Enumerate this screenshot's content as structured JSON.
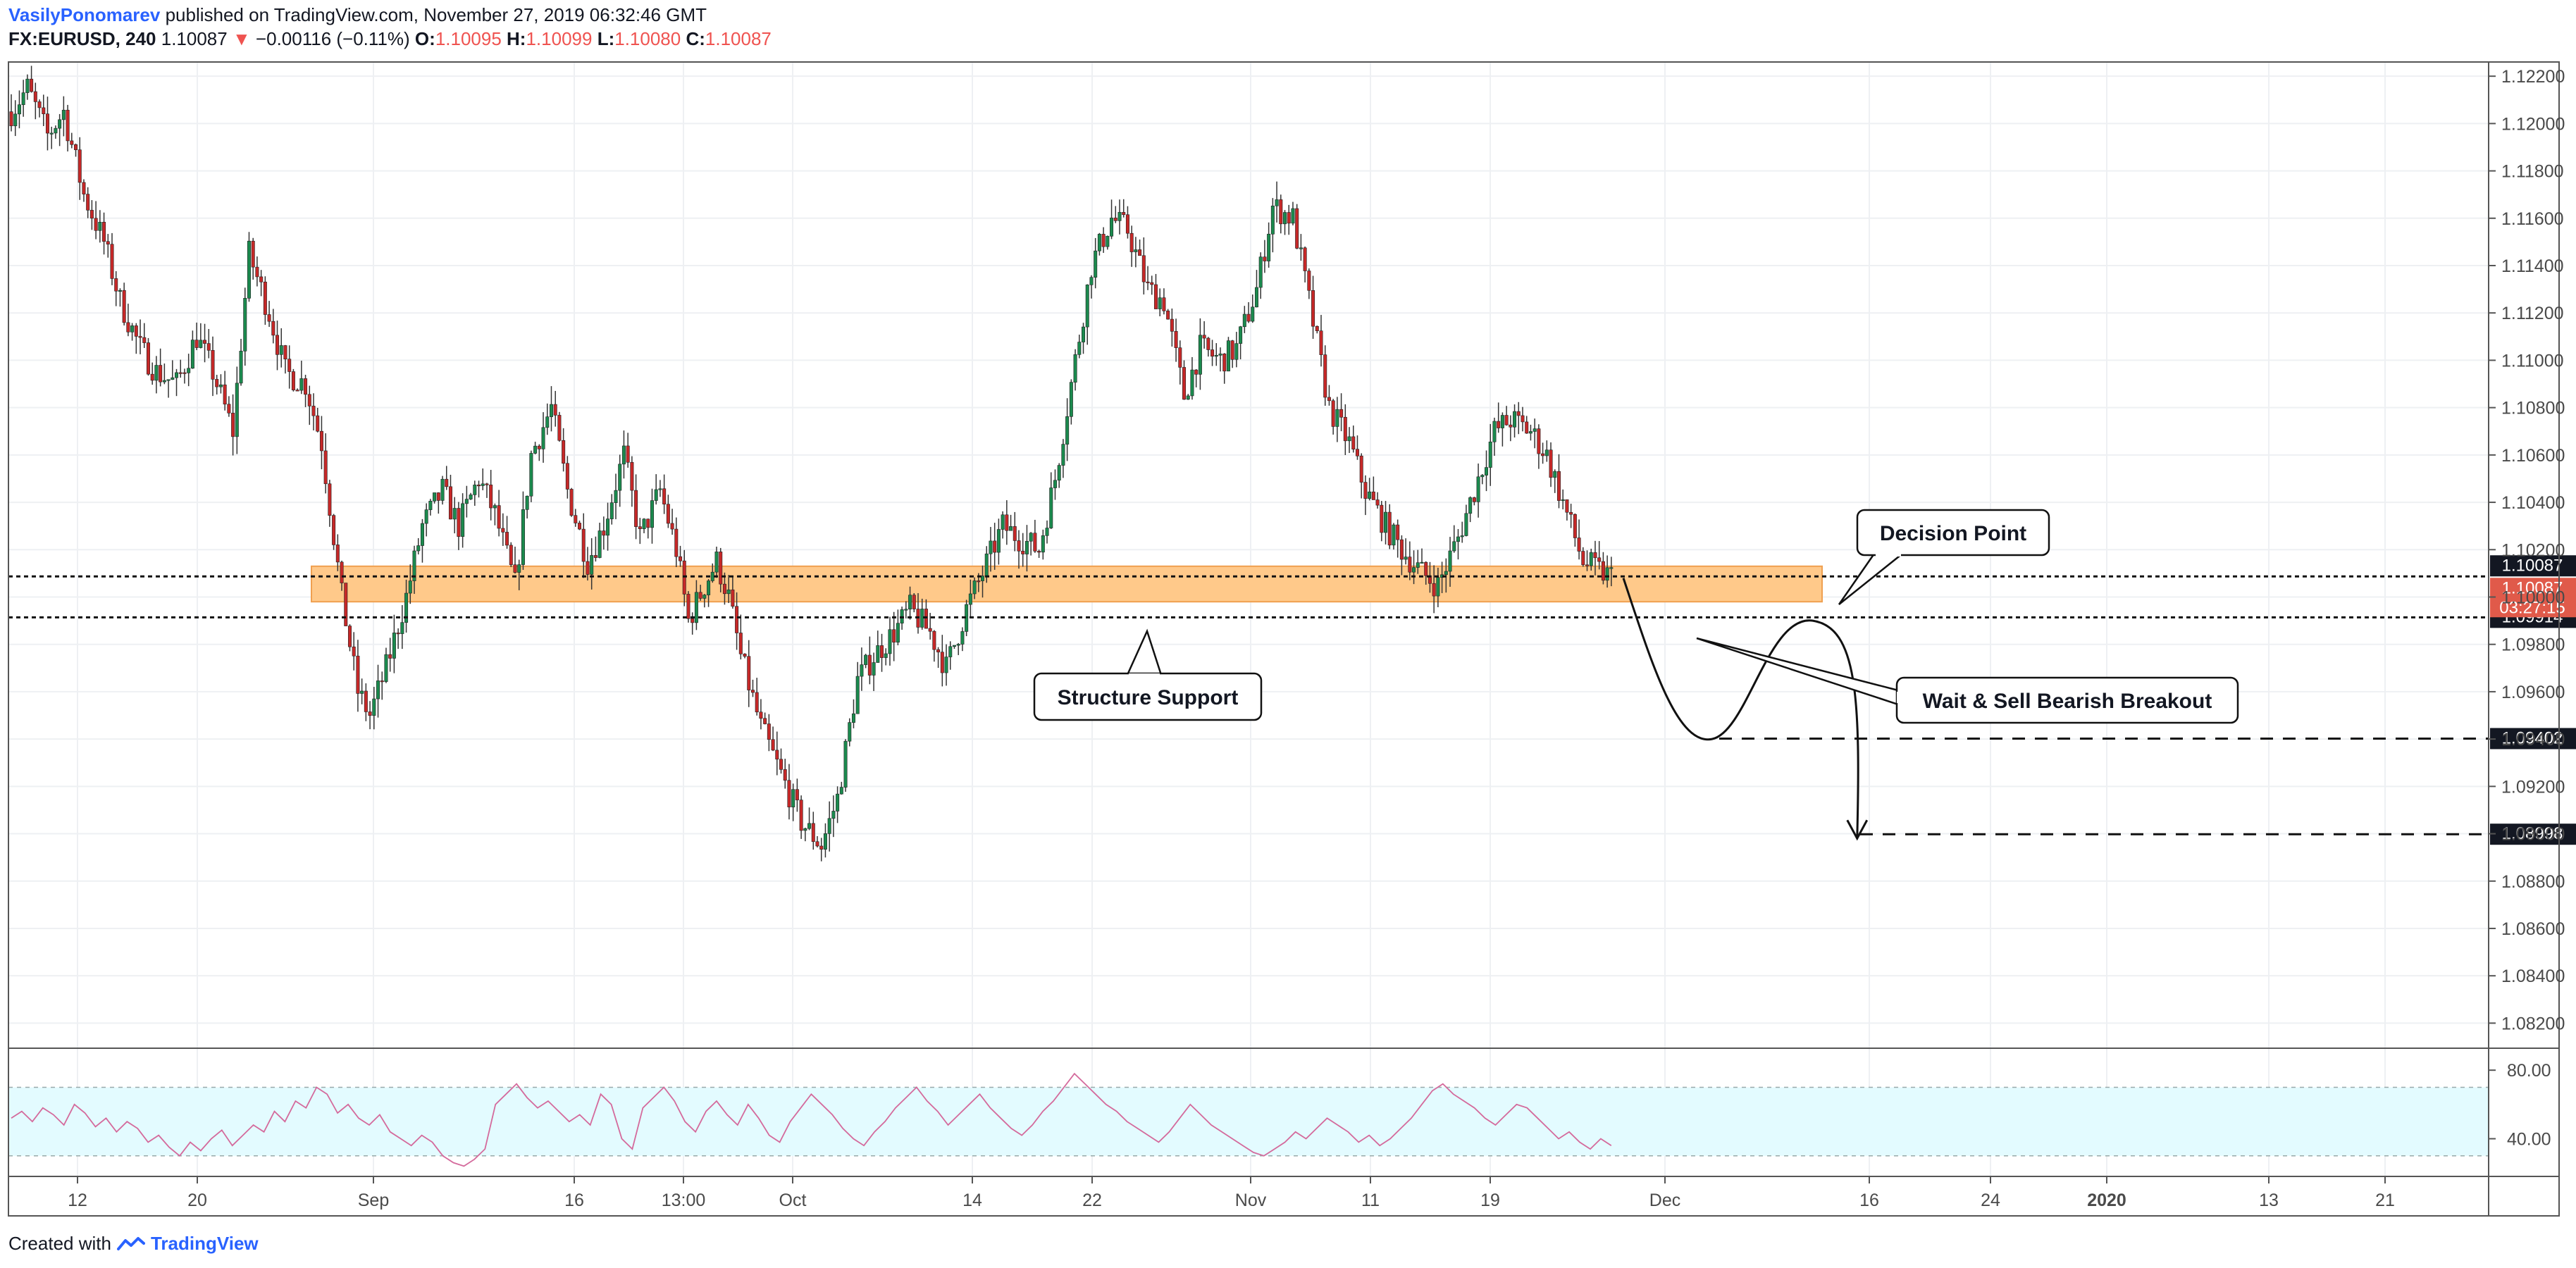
{
  "header": {
    "author": "VasilyPonomarev",
    "published": "published on TradingView.com, November 27, 2019 06:32:46 GMT",
    "symbol": "FX:EURUSD, 240",
    "last": "1.10087",
    "change_arrow": "▼",
    "change": "−0.00116 (−0.11%)",
    "o_label": "O:",
    "o": "1.10095",
    "h_label": "H:",
    "h": "1.10099",
    "l_label": "L:",
    "l": "1.10080",
    "c_label": "C:",
    "c": "1.10087"
  },
  "footer": {
    "created_with": "Created with",
    "brand": "TradingView",
    "logo_icon": "tradingview-logo-icon"
  },
  "colors": {
    "up": "#1b8a4e",
    "down": "#c62828",
    "zone": "#ffc98a",
    "rsi_band": "#e3fbff",
    "rsi_line": "#d46a9c",
    "grid": "#eef0f3",
    "axis_text": "#4a4a4a"
  },
  "chart_data": [
    {
      "type": "candlestick",
      "symbol": "FX:EURUSD",
      "interval": "240",
      "ylim": [
        1.081,
        1.1226
      ],
      "y_ticks": [
        "1.12200",
        "1.12000",
        "1.11800",
        "1.11600",
        "1.11400",
        "1.11200",
        "1.11000",
        "1.10800",
        "1.10600",
        "1.10400",
        "1.10200",
        "1.10000",
        "1.09800",
        "1.09600",
        "1.09400",
        "1.09200",
        "1.09000",
        "1.08800",
        "1.08600",
        "1.08400",
        "1.08200"
      ],
      "x_ticks": [
        "12",
        "20",
        "Sep",
        "16",
        "13:00",
        "Oct",
        "14",
        "22",
        "Nov",
        "11",
        "19",
        "Dec",
        "16",
        "24",
        "2020",
        "13",
        "21"
      ],
      "price_path": [
        [
          0,
          1.1205
        ],
        [
          4,
          1.1215
        ],
        [
          9,
          1.1195
        ],
        [
          13,
          1.1205
        ],
        [
          18,
          1.117
        ],
        [
          23,
          1.115
        ],
        [
          27,
          1.1125
        ],
        [
          32,
          1.1105
        ],
        [
          36,
          1.1095
        ],
        [
          41,
          1.109
        ],
        [
          46,
          1.111
        ],
        [
          50,
          1.1095
        ],
        [
          55,
          1.107
        ],
        [
          59,
          1.1145
        ],
        [
          64,
          1.112
        ],
        [
          68,
          1.1095
        ],
        [
          73,
          1.109
        ],
        [
          77,
          1.1065
        ],
        [
          82,
          1.1
        ],
        [
          86,
          1.096
        ],
        [
          89,
          1.095
        ],
        [
          93,
          1.097
        ],
        [
          98,
          1.1
        ],
        [
          102,
          1.103
        ],
        [
          107,
          1.1045
        ],
        [
          111,
          1.103
        ],
        [
          116,
          1.105
        ],
        [
          120,
          1.1035
        ],
        [
          125,
          1.1005
        ],
        [
          129,
          1.106
        ],
        [
          134,
          1.108
        ],
        [
          138,
          1.1045
        ],
        [
          143,
          1.1015
        ],
        [
          147,
          1.103
        ],
        [
          152,
          1.106
        ],
        [
          156,
          1.1025
        ],
        [
          161,
          1.1045
        ],
        [
          165,
          1.102
        ],
        [
          168,
          1.099
        ],
        [
          172,
          1.1005
        ],
        [
          175,
          1.1015
        ],
        [
          178,
          1.1
        ],
        [
          181,
          1.0975
        ],
        [
          186,
          1.0945
        ],
        [
          191,
          1.0925
        ],
        [
          196,
          1.0905
        ],
        [
          201,
          1.0895
        ],
        [
          205,
          1.0915
        ],
        [
          210,
          1.0965
        ],
        [
          214,
          1.0975
        ],
        [
          219,
          1.0985
        ],
        [
          223,
          1.0995
        ],
        [
          228,
          1.0985
        ],
        [
          232,
          1.097
        ],
        [
          237,
          1.0995
        ],
        [
          241,
          1.101
        ],
        [
          246,
          1.103
        ],
        [
          250,
          1.1025
        ],
        [
          255,
          1.102
        ],
        [
          259,
          1.105
        ],
        [
          264,
          1.11
        ],
        [
          268,
          1.114
        ],
        [
          273,
          1.116
        ],
        [
          277,
          1.1155
        ],
        [
          282,
          1.113
        ],
        [
          286,
          1.1125
        ],
        [
          291,
          1.1085
        ],
        [
          295,
          1.1105
        ],
        [
          300,
          1.11
        ],
        [
          304,
          1.1105
        ],
        [
          309,
          1.113
        ],
        [
          313,
          1.1165
        ],
        [
          318,
          1.116
        ],
        [
          322,
          1.1125
        ],
        [
          327,
          1.108
        ],
        [
          332,
          1.1065
        ],
        [
          336,
          1.1045
        ],
        [
          341,
          1.103
        ],
        [
          345,
          1.102
        ],
        [
          350,
          1.101
        ],
        [
          354,
          1.1005
        ],
        [
          359,
          1.1025
        ],
        [
          363,
          1.1045
        ],
        [
          368,
          1.107
        ],
        [
          372,
          1.1075
        ],
        [
          377,
          1.107
        ],
        [
          381,
          1.106
        ],
        [
          386,
          1.1035
        ],
        [
          390,
          1.1015
        ],
        [
          395,
          1.101
        ],
        [
          397,
          1.1009
        ]
      ],
      "support_zone": [
        1.0998,
        1.1013
      ],
      "levels": [
        {
          "price": 1.10087,
          "label": "1.10087",
          "style": "dotted"
        },
        {
          "price": 1.09914,
          "label": "1.09914",
          "style": "dotted"
        },
        {
          "price": 1.09402,
          "label": "1.09402",
          "style": "dashed"
        },
        {
          "price": 1.08998,
          "label": "1.08998",
          "style": "dashed"
        }
      ],
      "last_price": {
        "label": "1.10087",
        "countdown": "03:27:15"
      },
      "annotations": [
        {
          "text": "Decision Point"
        },
        {
          "text": "Structure Support"
        },
        {
          "text": "Wait & Sell Bearish Breakout"
        }
      ],
      "projection": [
        [
          400,
          1.1008
        ],
        [
          422,
          1.094
        ],
        [
          443,
          1.0975
        ],
        [
          447,
          1.099
        ],
        [
          458,
          1.0898
        ]
      ]
    },
    {
      "type": "line",
      "indicator": "RSI",
      "ylim": [
        18,
        92
      ],
      "y_ticks": [
        "80.00",
        "40.00"
      ],
      "bands": [
        30,
        70
      ],
      "values": [
        52,
        56,
        50,
        58,
        54,
        48,
        60,
        55,
        47,
        52,
        44,
        50,
        46,
        38,
        42,
        35,
        30,
        38,
        33,
        40,
        45,
        36,
        42,
        48,
        44,
        56,
        50,
        62,
        58,
        70,
        66,
        55,
        60,
        52,
        48,
        54,
        44,
        40,
        36,
        42,
        38,
        30,
        26,
        24,
        28,
        34,
        60,
        66,
        72,
        64,
        58,
        62,
        56,
        50,
        54,
        48,
        66,
        60,
        40,
        34,
        58,
        64,
        70,
        62,
        50,
        44,
        56,
        62,
        54,
        48,
        60,
        52,
        42,
        38,
        50,
        58,
        66,
        60,
        54,
        46,
        40,
        36,
        44,
        50,
        58,
        64,
        70,
        62,
        56,
        48,
        54,
        60,
        66,
        58,
        52,
        46,
        42,
        48,
        56,
        62,
        70,
        78,
        72,
        66,
        60,
        56,
        50,
        46,
        42,
        38,
        44,
        52,
        60,
        54,
        48,
        44,
        40,
        36,
        32,
        30,
        34,
        38,
        44,
        40,
        46,
        52,
        48,
        44,
        38,
        42,
        36,
        40,
        46,
        52,
        60,
        68,
        72,
        66,
        62,
        58,
        52,
        48,
        54,
        60,
        58,
        52,
        46,
        40,
        44,
        38,
        34,
        40,
        36
      ]
    }
  ]
}
